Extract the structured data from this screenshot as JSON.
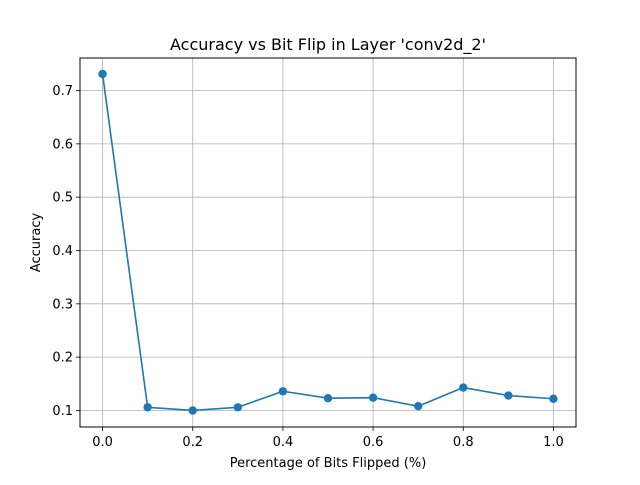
{
  "chart_data": {
    "type": "line",
    "title": "Accuracy vs Bit Flip in Layer 'conv2d_2'",
    "xlabel": "Percentage of Bits Flipped (%)",
    "ylabel": "Accuracy",
    "xlim": [
      -0.05,
      1.05
    ],
    "ylim": [
      0.069,
      0.761
    ],
    "xticks": [
      0.0,
      0.2,
      0.4,
      0.6,
      0.8,
      1.0
    ],
    "xtick_labels": [
      "0.0",
      "0.2",
      "0.4",
      "0.6",
      "0.8",
      "1.0"
    ],
    "yticks": [
      0.1,
      0.2,
      0.3,
      0.4,
      0.5,
      0.6,
      0.7
    ],
    "ytick_labels": [
      "0.1",
      "0.2",
      "0.3",
      "0.4",
      "0.5",
      "0.6",
      "0.7"
    ],
    "grid": true,
    "marker": "circle",
    "color": "#1f77b4",
    "series": [
      {
        "x": [
          0.0,
          0.1,
          0.2,
          0.3,
          0.4,
          0.5,
          0.6,
          0.7,
          0.8,
          0.9,
          1.0
        ],
        "values": [
          0.731,
          0.106,
          0.1,
          0.106,
          0.136,
          0.123,
          0.124,
          0.108,
          0.143,
          0.128,
          0.122
        ]
      }
    ]
  }
}
